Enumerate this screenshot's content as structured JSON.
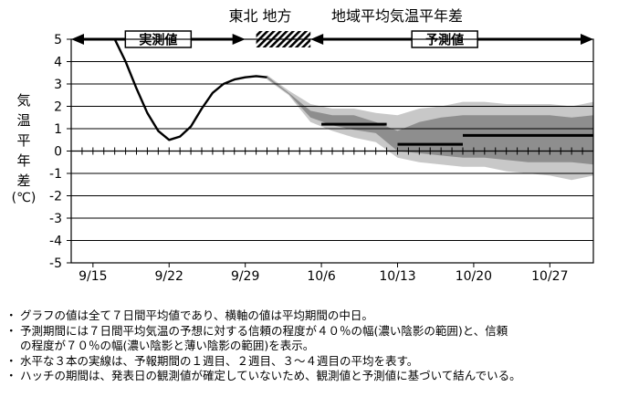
{
  "chart_data": {
    "type": "area",
    "title_region": "東北 地方",
    "title_main": "地域平均気温平年差",
    "ylabel_chars": [
      "気",
      "温",
      "平",
      "年",
      "差"
    ],
    "ylabel_unit": "(℃)",
    "ylim": [
      -5,
      5
    ],
    "yticks": [
      5,
      4,
      3,
      2,
      1,
      0,
      -1,
      -2,
      -3,
      -4,
      -5
    ],
    "x_start": "9/13",
    "x_end": "10/31",
    "x_ticks": [
      "9/15",
      "9/22",
      "9/29",
      "10/6",
      "10/13",
      "10/20",
      "10/27"
    ],
    "observed_label": "実測値",
    "forecast_label": "予測値",
    "observed_period": [
      "9/13",
      "9/29"
    ],
    "hatch_period": [
      "9/30",
      "10/5"
    ],
    "forecast_period": [
      "10/5",
      "10/31"
    ],
    "observed": {
      "x": [
        "9/17",
        "9/18",
        "9/19",
        "9/20",
        "9/21",
        "9/22",
        "9/23",
        "9/24",
        "9/25",
        "9/26",
        "9/27",
        "9/28",
        "9/29",
        "9/30",
        "10/1"
      ],
      "y": [
        5.0,
        4.0,
        2.8,
        1.7,
        0.9,
        0.5,
        0.65,
        1.1,
        1.9,
        2.6,
        3.0,
        3.2,
        3.3,
        3.35,
        3.3
      ]
    },
    "band70": {
      "x": [
        "10/1",
        "10/3",
        "10/5",
        "10/7",
        "10/9",
        "10/11",
        "10/13",
        "10/15",
        "10/17",
        "10/19",
        "10/21",
        "10/23",
        "10/25",
        "10/27",
        "10/29",
        "10/31"
      ],
      "upper": [
        3.4,
        2.7,
        2.1,
        1.9,
        1.9,
        1.7,
        1.6,
        1.9,
        2.0,
        2.2,
        2.2,
        2.1,
        2.1,
        2.1,
        2.0,
        2.2
      ],
      "lower": [
        3.2,
        2.5,
        1.3,
        0.9,
        0.6,
        0.4,
        -0.3,
        -0.5,
        -0.6,
        -0.7,
        -0.7,
        -0.9,
        -1.0,
        -1.1,
        -1.3,
        -1.1
      ]
    },
    "band40": {
      "x": [
        "10/1",
        "10/3",
        "10/5",
        "10/7",
        "10/9",
        "10/11",
        "10/13",
        "10/15",
        "10/17",
        "10/19",
        "10/21",
        "10/23",
        "10/25",
        "10/27",
        "10/29",
        "10/31"
      ],
      "upper": [
        3.35,
        2.6,
        1.8,
        1.6,
        1.6,
        1.3,
        0.9,
        1.3,
        1.5,
        1.6,
        1.6,
        1.6,
        1.6,
        1.6,
        1.5,
        1.6
      ],
      "lower": [
        3.25,
        2.55,
        1.5,
        1.15,
        0.95,
        0.8,
        0.0,
        -0.1,
        -0.2,
        -0.3,
        -0.3,
        -0.4,
        -0.5,
        -0.5,
        -0.5,
        -0.6
      ]
    },
    "weekly_means": [
      {
        "period": "1週目",
        "from": "10/6",
        "to": "10/12",
        "value": 1.2
      },
      {
        "period": "2週目",
        "from": "10/13",
        "to": "10/19",
        "value": 0.3
      },
      {
        "period": "3〜4週目",
        "from": "10/19",
        "to": "10/31",
        "value": 0.7
      }
    ]
  },
  "notes": [
    "グラフの値は全て７日間平均値であり、横軸の値は平均期間の中日。",
    "予測期間には７日間平均気温の予想に対する信頼の程度が４０％の幅(濃い陰影の範囲)と、信頼",
    "の程度が７０％の幅(濃い陰影と薄い陰影の範囲)を表示。",
    "水平な３本の実線は、予報期間の１週目、２週目、３～４週目の平均を表す。",
    "ハッチの期間は、発表日の観測値が確定していないため、観測値と予測値に基づいて結んでいる。"
  ],
  "bullet": "・",
  "colors": {
    "band70": "#c8c8c8",
    "band40": "#8e8e8e",
    "line": "#000000",
    "hatch": "#000000"
  }
}
